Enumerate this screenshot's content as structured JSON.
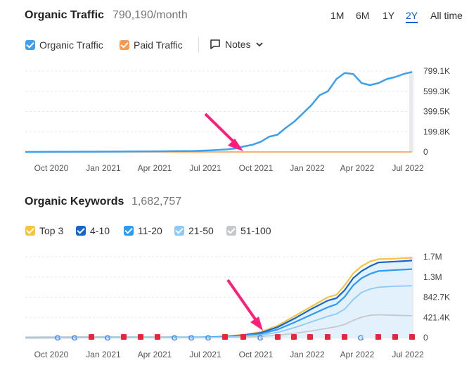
{
  "traffic": {
    "title": "Organic Traffic",
    "value": "790,190/month",
    "ranges": [
      "1M",
      "6M",
      "1Y",
      "2Y",
      "All time"
    ],
    "active_range": "2Y",
    "legend": [
      {
        "label": "Organic Traffic",
        "color": "#3ea0ea"
      },
      {
        "label": "Paid Traffic",
        "color": "#f59a4f"
      }
    ],
    "notes_label": "Notes"
  },
  "keywords": {
    "title": "Organic Keywords",
    "value": "1,682,757",
    "legend": [
      {
        "label": "Top 3",
        "color": "#f6c343"
      },
      {
        "label": "4-10",
        "color": "#1467c7"
      },
      {
        "label": "11-20",
        "color": "#2e9bf0"
      },
      {
        "label": "21-50",
        "color": "#8ccaf8"
      },
      {
        "label": "51-100",
        "color": "#c6c8cc"
      }
    ]
  },
  "chart_data": [
    {
      "type": "line",
      "title": "Organic Traffic",
      "x_ticks": [
        "Oct 2020",
        "Jan 2021",
        "Apr 2021",
        "Jul 2021",
        "Oct 2021",
        "Jan 2022",
        "Apr 2022",
        "Jul 2022"
      ],
      "y_ticks": [
        "799.1K",
        "599.3K",
        "399.5K",
        "199.8K",
        "0"
      ],
      "ylim": [
        0,
        799100
      ],
      "x": [
        0,
        2,
        4,
        6,
        8,
        10,
        11,
        12,
        12.5,
        13,
        13.5,
        14,
        14.5,
        15,
        15.5,
        16,
        16.5,
        17,
        17.5,
        18,
        18.5,
        19,
        19.5,
        20,
        20.5,
        21,
        21.5,
        22,
        22.5,
        23
      ],
      "series": [
        {
          "name": "Organic Traffic",
          "values": [
            0,
            2000,
            3000,
            4000,
            6000,
            10000,
            15000,
            25000,
            35000,
            55000,
            70000,
            100000,
            150000,
            170000,
            240000,
            300000,
            380000,
            460000,
            560000,
            600000,
            720000,
            780000,
            770000,
            680000,
            660000,
            680000,
            720000,
            740000,
            770000,
            790000
          ]
        },
        {
          "name": "Paid Traffic",
          "values": [
            0,
            0,
            0,
            0,
            0,
            0,
            0,
            0,
            0,
            0,
            0,
            0,
            0,
            0,
            0,
            0,
            0,
            0,
            0,
            0,
            0,
            0,
            0,
            0,
            0,
            0,
            0,
            0,
            0,
            0
          ]
        }
      ]
    },
    {
      "type": "area",
      "title": "Organic Keywords",
      "x_ticks": [
        "Oct 2020",
        "Jan 2021",
        "Apr 2021",
        "Jul 2021",
        "Oct 2021",
        "Jan 2022",
        "Apr 2022",
        "Jul 2022"
      ],
      "y_ticks": [
        "1.7M",
        "1.3M",
        "842.7K",
        "421.4K",
        "0"
      ],
      "ylim": [
        0,
        1700000
      ],
      "x": [
        0,
        4,
        8,
        10,
        11,
        12,
        13,
        14,
        15,
        16,
        17,
        18,
        18.5,
        19,
        19.5,
        20,
        20.5,
        21,
        22,
        23
      ],
      "series": [
        {
          "name": "Top 3",
          "values": [
            0,
            1000,
            2000,
            5000,
            10000,
            30000,
            60000,
            120000,
            250000,
            450000,
            650000,
            850000,
            900000,
            1100000,
            1350000,
            1500000,
            1600000,
            1650000,
            1660000,
            1680000
          ]
        },
        {
          "name": "4-10",
          "values": [
            0,
            1000,
            2000,
            4000,
            9000,
            25000,
            55000,
            100000,
            220000,
            400000,
            600000,
            780000,
            830000,
            1000000,
            1250000,
            1400000,
            1500000,
            1580000,
            1600000,
            1620000
          ]
        },
        {
          "name": "11-20",
          "values": [
            0,
            800,
            1500,
            3000,
            7000,
            20000,
            45000,
            80000,
            170000,
            320000,
            480000,
            640000,
            700000,
            860000,
            1100000,
            1250000,
            1340000,
            1400000,
            1420000,
            1440000
          ]
        },
        {
          "name": "21-50",
          "values": [
            0,
            500,
            1000,
            2000,
            5000,
            12000,
            30000,
            55000,
            110000,
            210000,
            330000,
            450000,
            500000,
            600000,
            800000,
            950000,
            1020000,
            1060000,
            1080000,
            1090000
          ]
        },
        {
          "name": "51-100",
          "values": [
            0,
            200,
            500,
            1000,
            2000,
            5000,
            12000,
            25000,
            50000,
            90000,
            140000,
            200000,
            230000,
            280000,
            360000,
            430000,
            470000,
            480000,
            470000,
            460000
          ]
        }
      ]
    }
  ]
}
